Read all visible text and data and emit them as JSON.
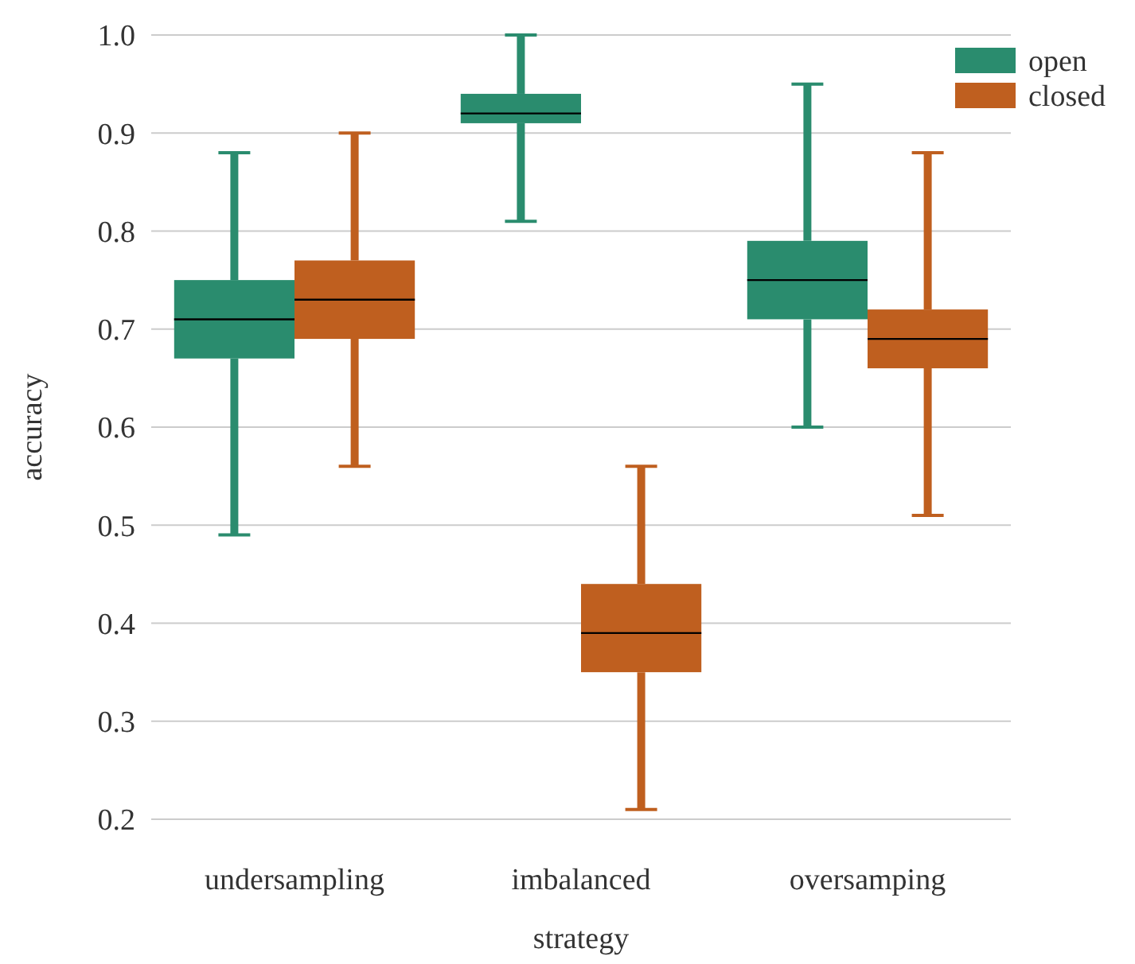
{
  "chart_data": {
    "type": "box",
    "xlabel": "strategy",
    "ylabel": "accuracy",
    "categories": [
      "undersampling",
      "imbalanced",
      "oversamping"
    ],
    "ylim": [
      0.2,
      1.0
    ],
    "yticks": [
      {
        "value": 0.2,
        "label": "0.2"
      },
      {
        "value": 0.3,
        "label": "0.3"
      },
      {
        "value": 0.4,
        "label": "0.4"
      },
      {
        "value": 0.5,
        "label": "0.5"
      },
      {
        "value": 0.6,
        "label": "0.6"
      },
      {
        "value": 0.7,
        "label": "0.7"
      },
      {
        "value": 0.8,
        "label": "0.8"
      },
      {
        "value": 0.9,
        "label": "0.9"
      },
      {
        "value": 1.0,
        "label": "1.0"
      }
    ],
    "grid": "y",
    "legend": "top right",
    "series": [
      {
        "name": "open",
        "color": "#2a8c6e",
        "boxes": [
          {
            "low": 0.49,
            "q1": 0.67,
            "median": 0.71,
            "q3": 0.75,
            "high": 0.88
          },
          {
            "low": 0.81,
            "q1": 0.91,
            "median": 0.92,
            "q3": 0.94,
            "high": 1.0
          },
          {
            "low": 0.6,
            "q1": 0.71,
            "median": 0.75,
            "q3": 0.79,
            "high": 0.95
          }
        ]
      },
      {
        "name": "closed",
        "color": "#bf5f1f",
        "boxes": [
          {
            "low": 0.56,
            "q1": 0.69,
            "median": 0.73,
            "q3": 0.77,
            "high": 0.9
          },
          {
            "low": 0.21,
            "q1": 0.35,
            "median": 0.39,
            "q3": 0.44,
            "high": 0.56
          },
          {
            "low": 0.51,
            "q1": 0.66,
            "median": 0.69,
            "q3": 0.72,
            "high": 0.88
          }
        ]
      }
    ]
  }
}
